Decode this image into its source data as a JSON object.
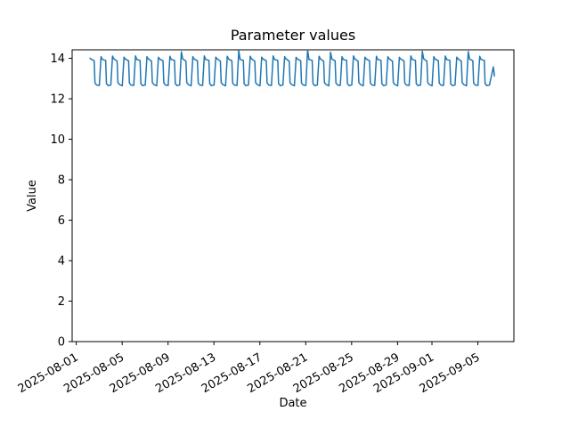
{
  "chart_data": {
    "type": "line",
    "title": "Parameter values",
    "grid": false,
    "legend": null,
    "background_color": "#ffffff",
    "axis_color": "#000000",
    "x_axis": {
      "label": "Date",
      "epoch": "2025-08-01",
      "unit": "days since 2025-08-01 00:00",
      "lim_days": [
        -0.36,
        38.14
      ],
      "tick_rotation_deg": 30,
      "ticks": [
        {
          "day": 0,
          "label": "2025-08-01"
        },
        {
          "day": 4,
          "label": "2025-08-05"
        },
        {
          "day": 8,
          "label": "2025-08-09"
        },
        {
          "day": 12,
          "label": "2025-08-13"
        },
        {
          "day": 16,
          "label": "2025-08-17"
        },
        {
          "day": 20,
          "label": "2025-08-21"
        },
        {
          "day": 24,
          "label": "2025-08-25"
        },
        {
          "day": 28,
          "label": "2025-08-29"
        },
        {
          "day": 31,
          "label": "2025-09-01"
        },
        {
          "day": 35,
          "label": "2025-09-05"
        }
      ]
    },
    "y_axis": {
      "label": "Value",
      "lim": [
        0,
        14.42
      ],
      "ticks": [
        0,
        2,
        4,
        6,
        8,
        10,
        12,
        14
      ]
    },
    "series": [
      {
        "name": "Parameter values",
        "color": "#1f77b4",
        "line_width": 1.5,
        "points": [
          [
            1.16,
            14.02
          ],
          [
            1.28,
            13.96
          ],
          [
            1.56,
            13.88
          ],
          [
            1.63,
            12.78
          ],
          [
            1.78,
            12.68
          ],
          [
            2.01,
            12.66
          ],
          [
            2.16,
            14.08
          ],
          [
            2.28,
            13.94
          ],
          [
            2.56,
            13.9
          ],
          [
            2.63,
            12.75
          ],
          [
            2.78,
            12.65
          ],
          [
            3.01,
            12.68
          ],
          [
            3.16,
            14.11
          ],
          [
            3.28,
            13.97
          ],
          [
            3.56,
            13.86
          ],
          [
            3.63,
            12.8
          ],
          [
            3.78,
            12.7
          ],
          [
            4.01,
            12.64
          ],
          [
            4.16,
            14.06
          ],
          [
            4.28,
            13.96
          ],
          [
            4.56,
            13.88
          ],
          [
            4.63,
            12.78
          ],
          [
            4.78,
            12.68
          ],
          [
            5.01,
            12.66
          ],
          [
            5.16,
            14.12
          ],
          [
            5.28,
            13.94
          ],
          [
            5.56,
            13.9
          ],
          [
            5.63,
            12.75
          ],
          [
            5.78,
            12.65
          ],
          [
            6.01,
            12.68
          ],
          [
            6.16,
            14.08
          ],
          [
            6.28,
            13.97
          ],
          [
            6.56,
            13.86
          ],
          [
            6.63,
            12.8
          ],
          [
            6.78,
            12.7
          ],
          [
            7.01,
            12.64
          ],
          [
            7.16,
            14.05
          ],
          [
            7.28,
            13.96
          ],
          [
            7.56,
            13.88
          ],
          [
            7.63,
            12.78
          ],
          [
            7.78,
            12.68
          ],
          [
            8.01,
            12.66
          ],
          [
            8.16,
            14.1
          ],
          [
            8.28,
            13.94
          ],
          [
            8.56,
            13.9
          ],
          [
            8.63,
            12.75
          ],
          [
            8.78,
            12.65
          ],
          [
            9.01,
            12.68
          ],
          [
            9.16,
            14.32
          ],
          [
            9.28,
            13.97
          ],
          [
            9.56,
            13.86
          ],
          [
            9.63,
            12.8
          ],
          [
            9.78,
            12.7
          ],
          [
            10.01,
            12.64
          ],
          [
            10.16,
            14.08
          ],
          [
            10.28,
            13.96
          ],
          [
            10.56,
            13.88
          ],
          [
            10.63,
            12.78
          ],
          [
            10.78,
            12.68
          ],
          [
            11.01,
            12.66
          ],
          [
            11.16,
            14.12
          ],
          [
            11.28,
            13.94
          ],
          [
            11.56,
            13.9
          ],
          [
            11.63,
            12.75
          ],
          [
            11.78,
            12.65
          ],
          [
            12.01,
            12.68
          ],
          [
            12.16,
            14.06
          ],
          [
            12.28,
            13.97
          ],
          [
            12.56,
            13.86
          ],
          [
            12.63,
            12.8
          ],
          [
            12.78,
            12.7
          ],
          [
            13.01,
            12.64
          ],
          [
            13.16,
            14.1
          ],
          [
            13.28,
            13.96
          ],
          [
            13.56,
            13.88
          ],
          [
            13.63,
            12.78
          ],
          [
            13.78,
            12.68
          ],
          [
            14.01,
            12.66
          ],
          [
            14.16,
            14.38
          ],
          [
            14.28,
            13.94
          ],
          [
            14.56,
            13.9
          ],
          [
            14.63,
            12.75
          ],
          [
            14.78,
            12.65
          ],
          [
            15.01,
            12.68
          ],
          [
            15.16,
            14.1
          ],
          [
            15.28,
            13.97
          ],
          [
            15.56,
            13.86
          ],
          [
            15.63,
            12.8
          ],
          [
            15.78,
            12.7
          ],
          [
            16.01,
            12.64
          ],
          [
            16.16,
            14.06
          ],
          [
            16.28,
            13.96
          ],
          [
            16.56,
            13.88
          ],
          [
            16.63,
            12.78
          ],
          [
            16.78,
            12.68
          ],
          [
            17.01,
            12.66
          ],
          [
            17.16,
            14.12
          ],
          [
            17.28,
            13.94
          ],
          [
            17.56,
            13.9
          ],
          [
            17.63,
            12.75
          ],
          [
            17.78,
            12.65
          ],
          [
            18.01,
            12.68
          ],
          [
            18.16,
            14.08
          ],
          [
            18.28,
            13.97
          ],
          [
            18.56,
            13.86
          ],
          [
            18.63,
            12.8
          ],
          [
            18.78,
            12.7
          ],
          [
            19.01,
            12.64
          ],
          [
            19.16,
            14.05
          ],
          [
            19.28,
            13.96
          ],
          [
            19.56,
            13.88
          ],
          [
            19.63,
            12.78
          ],
          [
            19.78,
            12.68
          ],
          [
            20.01,
            12.66
          ],
          [
            20.16,
            14.42
          ],
          [
            20.28,
            13.94
          ],
          [
            20.56,
            13.9
          ],
          [
            20.63,
            12.75
          ],
          [
            20.78,
            12.65
          ],
          [
            21.01,
            12.68
          ],
          [
            21.16,
            14.1
          ],
          [
            21.28,
            13.97
          ],
          [
            21.56,
            13.86
          ],
          [
            21.63,
            12.8
          ],
          [
            21.78,
            12.7
          ],
          [
            22.01,
            12.64
          ],
          [
            22.16,
            14.3
          ],
          [
            22.28,
            13.96
          ],
          [
            22.56,
            13.88
          ],
          [
            22.63,
            12.78
          ],
          [
            22.78,
            12.68
          ],
          [
            23.01,
            12.66
          ],
          [
            23.16,
            14.08
          ],
          [
            23.28,
            13.94
          ],
          [
            23.56,
            13.9
          ],
          [
            23.63,
            12.75
          ],
          [
            23.78,
            12.65
          ],
          [
            24.01,
            12.68
          ],
          [
            24.16,
            14.12
          ],
          [
            24.28,
            13.97
          ],
          [
            24.56,
            13.86
          ],
          [
            24.63,
            12.8
          ],
          [
            24.78,
            12.7
          ],
          [
            25.01,
            12.64
          ],
          [
            25.16,
            14.06
          ],
          [
            25.28,
            13.96
          ],
          [
            25.56,
            13.88
          ],
          [
            25.63,
            12.78
          ],
          [
            25.78,
            12.68
          ],
          [
            26.01,
            12.66
          ],
          [
            26.16,
            14.1
          ],
          [
            26.28,
            13.94
          ],
          [
            26.56,
            13.9
          ],
          [
            26.63,
            12.75
          ],
          [
            26.78,
            12.65
          ],
          [
            27.01,
            12.68
          ],
          [
            27.16,
            14.08
          ],
          [
            27.28,
            13.97
          ],
          [
            27.56,
            13.86
          ],
          [
            27.63,
            12.8
          ],
          [
            27.78,
            12.7
          ],
          [
            28.01,
            12.64
          ],
          [
            28.16,
            14.05
          ],
          [
            28.28,
            13.96
          ],
          [
            28.56,
            13.88
          ],
          [
            28.63,
            12.78
          ],
          [
            28.78,
            12.68
          ],
          [
            29.01,
            12.66
          ],
          [
            29.16,
            14.12
          ],
          [
            29.28,
            13.94
          ],
          [
            29.56,
            13.9
          ],
          [
            29.63,
            12.75
          ],
          [
            29.78,
            12.65
          ],
          [
            30.01,
            12.68
          ],
          [
            30.16,
            14.35
          ],
          [
            30.28,
            13.97
          ],
          [
            30.56,
            13.86
          ],
          [
            30.63,
            12.8
          ],
          [
            30.78,
            12.7
          ],
          [
            31.01,
            12.64
          ],
          [
            31.16,
            14.08
          ],
          [
            31.28,
            13.96
          ],
          [
            31.56,
            13.88
          ],
          [
            31.63,
            12.78
          ],
          [
            31.78,
            12.68
          ],
          [
            32.01,
            12.66
          ],
          [
            32.16,
            14.11
          ],
          [
            32.28,
            13.94
          ],
          [
            32.56,
            13.9
          ],
          [
            32.63,
            12.75
          ],
          [
            32.78,
            12.65
          ],
          [
            33.01,
            12.68
          ],
          [
            33.16,
            14.06
          ],
          [
            33.28,
            13.97
          ],
          [
            33.56,
            13.86
          ],
          [
            33.63,
            12.8
          ],
          [
            33.78,
            12.7
          ],
          [
            34.01,
            12.64
          ],
          [
            34.16,
            14.33
          ],
          [
            34.28,
            13.96
          ],
          [
            34.56,
            13.88
          ],
          [
            34.63,
            12.78
          ],
          [
            34.78,
            12.68
          ],
          [
            35.01,
            12.66
          ],
          [
            35.16,
            14.1
          ],
          [
            35.28,
            13.94
          ],
          [
            35.56,
            13.9
          ],
          [
            35.63,
            12.75
          ],
          [
            35.78,
            12.65
          ],
          [
            36.01,
            12.68
          ],
          [
            36.35,
            13.58
          ],
          [
            36.45,
            13.1
          ]
        ]
      }
    ]
  }
}
